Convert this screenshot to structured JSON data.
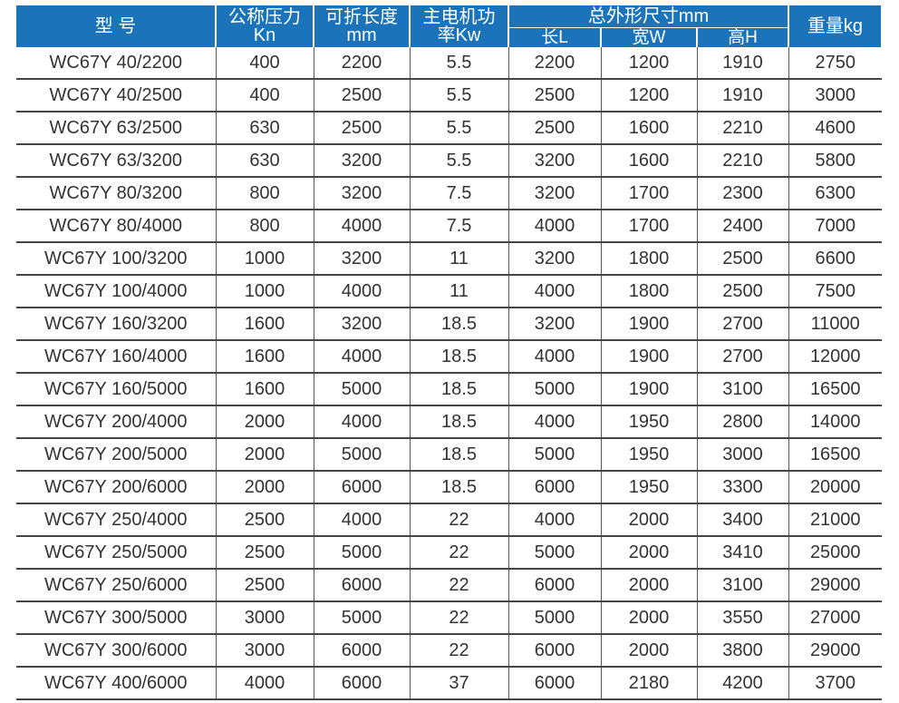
{
  "header": {
    "model": "型 号",
    "pressure": "公称压力Kn",
    "length": "可折长度mm",
    "power": "主电机功率Kw",
    "dims": "总外形尺寸mm",
    "dim_l": "长L",
    "dim_w": "宽W",
    "dim_h": "高H",
    "weight": "重量kg"
  },
  "rows": [
    [
      "WC67Y 40/2200",
      "400",
      "2200",
      "5.5",
      "2200",
      "1200",
      "1910",
      "2750"
    ],
    [
      "WC67Y 40/2500",
      "400",
      "2500",
      "5.5",
      "2500",
      "1200",
      "1910",
      "3000"
    ],
    [
      "WC67Y 63/2500",
      "630",
      "2500",
      "5.5",
      "2500",
      "1600",
      "2210",
      "4600"
    ],
    [
      "WC67Y 63/3200",
      "630",
      "3200",
      "5.5",
      "3200",
      "1600",
      "2210",
      "5800"
    ],
    [
      "WC67Y 80/3200",
      "800",
      "3200",
      "7.5",
      "3200",
      "1700",
      "2300",
      "6300"
    ],
    [
      "WC67Y 80/4000",
      "800",
      "4000",
      "7.5",
      "4000",
      "1700",
      "2400",
      "7000"
    ],
    [
      "WC67Y 100/3200",
      "1000",
      "3200",
      "11",
      "3200",
      "1800",
      "2500",
      "6600"
    ],
    [
      "WC67Y 100/4000",
      "1000",
      "4000",
      "11",
      "4000",
      "1800",
      "2500",
      "7500"
    ],
    [
      "WC67Y 160/3200",
      "1600",
      "3200",
      "18.5",
      "3200",
      "1900",
      "2700",
      "11000"
    ],
    [
      "WC67Y 160/4000",
      "1600",
      "4000",
      "18.5",
      "4000",
      "1900",
      "2700",
      "12000"
    ],
    [
      "WC67Y 160/5000",
      "1600",
      "5000",
      "18.5",
      "5000",
      "1900",
      "3100",
      "16500"
    ],
    [
      "WC67Y 200/4000",
      "2000",
      "4000",
      "18.5",
      "4000",
      "1950",
      "2800",
      "14000"
    ],
    [
      "WC67Y 200/5000",
      "2000",
      "5000",
      "18.5",
      "5000",
      "1950",
      "3000",
      "16500"
    ],
    [
      "WC67Y 200/6000",
      "2000",
      "6000",
      "18.5",
      "6000",
      "1950",
      "3300",
      "20000"
    ],
    [
      "WC67Y 250/4000",
      "2500",
      "4000",
      "22",
      "4000",
      "2000",
      "3400",
      "21000"
    ],
    [
      "WC67Y 250/5000",
      "2500",
      "5000",
      "22",
      "5000",
      "2000",
      "3410",
      "25000"
    ],
    [
      "WC67Y 250/6000",
      "2500",
      "6000",
      "22",
      "6000",
      "2000",
      "3100",
      "29000"
    ],
    [
      "WC67Y 300/5000",
      "3000",
      "5000",
      "22",
      "5000",
      "2000",
      "3550",
      "27000"
    ],
    [
      "WC67Y 300/6000",
      "3000",
      "6000",
      "22",
      "6000",
      "2000",
      "3800",
      "29000"
    ],
    [
      "WC67Y 400/6000",
      "4000",
      "6000",
      "37",
      "6000",
      "2180",
      "4200",
      "3700"
    ]
  ],
  "colors": {
    "header_bg": "#1b74b9",
    "header_text": "#ffffff",
    "body_text": "#333333"
  }
}
